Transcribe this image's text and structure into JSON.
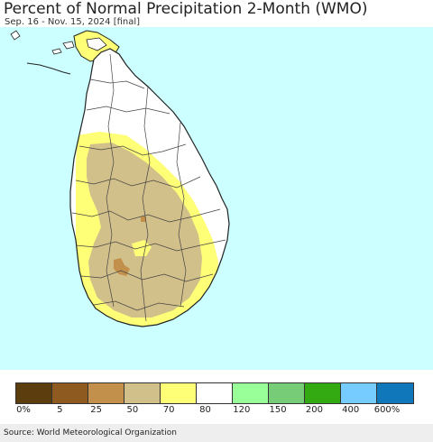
{
  "header": {
    "title": "Percent of Normal Precipitation 2-Month (WMO)",
    "subtitle": "Sep. 16 - Nov. 15, 2024 [final]"
  },
  "map": {
    "ocean_color": "#ccffff",
    "land_color": "#ffffff",
    "border_color": "#222222"
  },
  "legend": {
    "colors": [
      "#5c3d0e",
      "#8f5a20",
      "#c2904a",
      "#d2c08a",
      "#ffff77",
      "#ffffff",
      "#99ff99",
      "#77cc77",
      "#33aa11",
      "#77ccff",
      "#1177bb"
    ],
    "labels": [
      "0%",
      "5",
      "25",
      "50",
      "70",
      "80",
      "120",
      "150",
      "200",
      "400",
      "600%"
    ]
  },
  "footer": {
    "source": "Source: World Meteorological Organization"
  }
}
